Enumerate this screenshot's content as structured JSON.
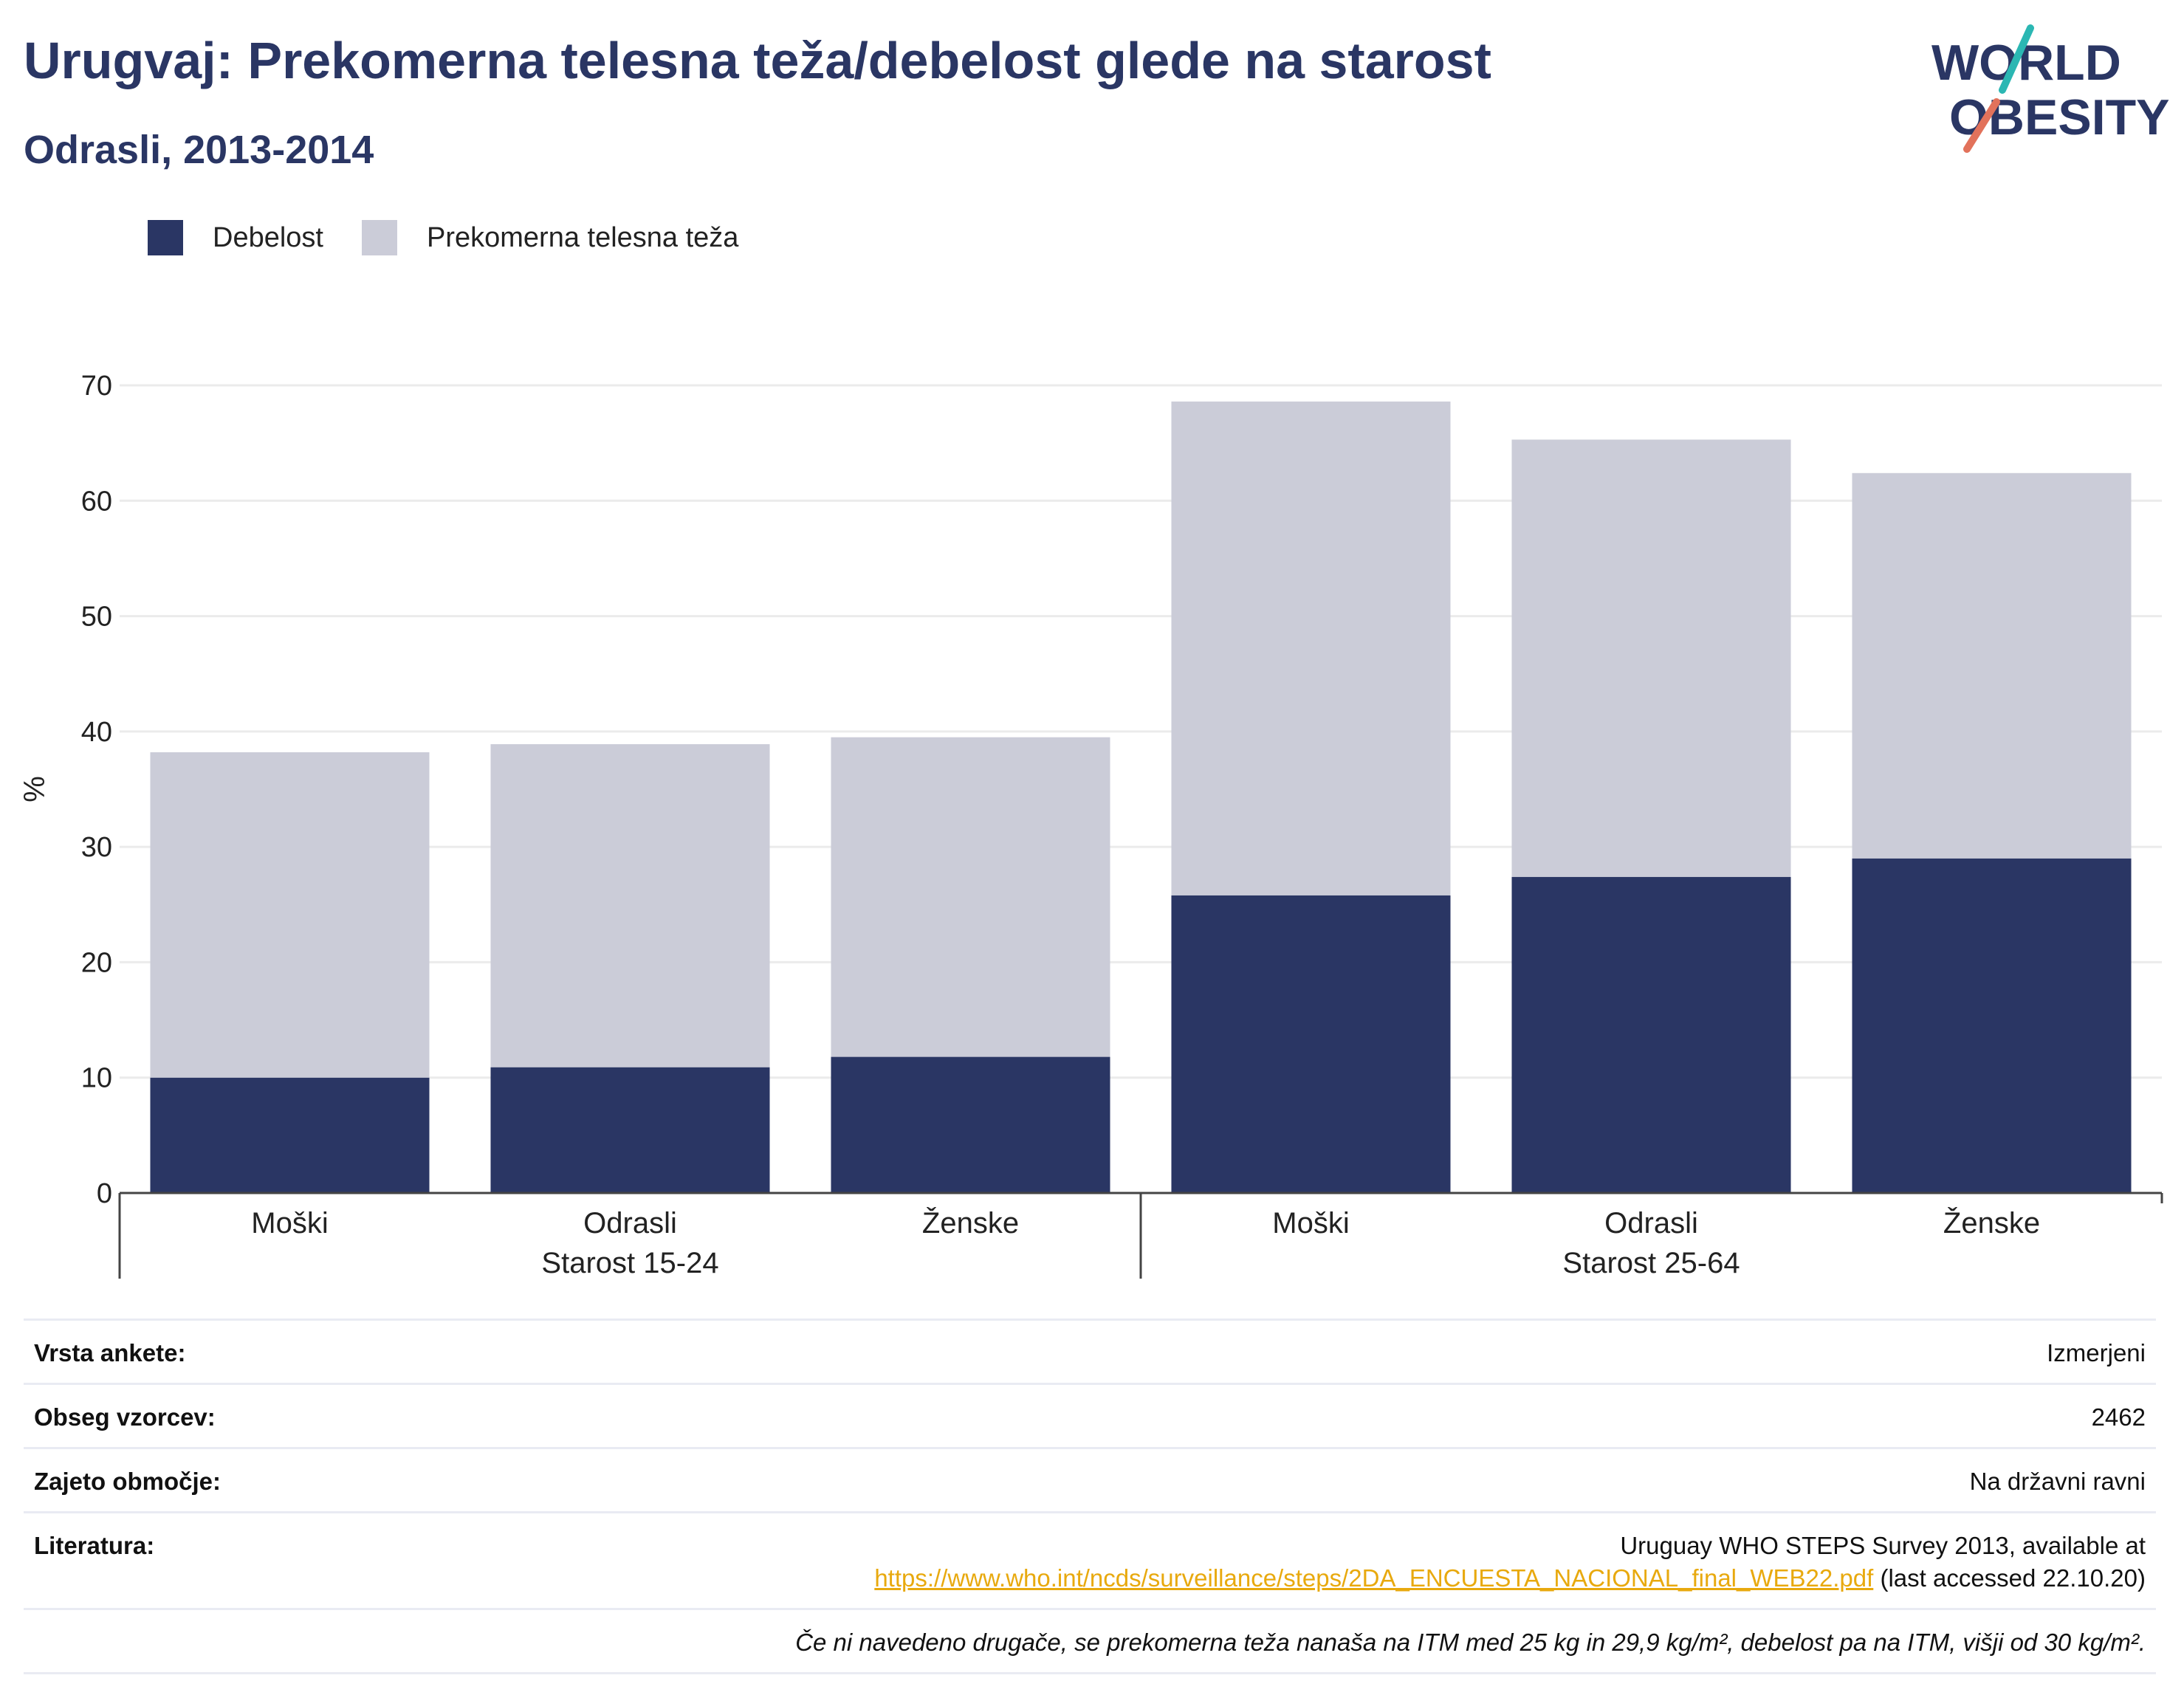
{
  "header": {
    "title": "Urugvaj: Prekomerna telesna teža/debelost glede na starost",
    "subtitle": "Odrasli, 2013-2014"
  },
  "logo": {
    "line1": "WORLD",
    "line2": "OBESITY"
  },
  "colors": {
    "obesity": "#2a3664",
    "overweight": "#cbccd8",
    "title": "#2a3664",
    "link": "#e8a90e",
    "logo_teal": "#2bb7b3",
    "logo_coral": "#e2725b"
  },
  "chart_data": {
    "type": "bar",
    "stacked": true,
    "ylabel": "%",
    "ylim": [
      0,
      70
    ],
    "yticks": [
      0,
      10,
      20,
      30,
      40,
      50,
      60,
      70
    ],
    "grid": true,
    "legend_position": "top-left",
    "groups": [
      {
        "label": "Starost 15-24",
        "categories": [
          "Moški",
          "Odrasli",
          "Ženske"
        ]
      },
      {
        "label": "Starost 25-64",
        "categories": [
          "Moški",
          "Odrasli",
          "Ženske"
        ]
      }
    ],
    "categories": [
      "Moški",
      "Odrasli",
      "Ženske",
      "Moški",
      "Odrasli",
      "Ženske"
    ],
    "series": [
      {
        "name": "Debelost",
        "values": [
          10.0,
          10.9,
          11.8,
          25.8,
          27.4,
          29.0
        ]
      },
      {
        "name": "Prekomerna telesna teža",
        "values": [
          28.2,
          28.0,
          27.7,
          42.8,
          37.9,
          33.4
        ]
      }
    ]
  },
  "info": {
    "survey_type": {
      "label": "Vrsta ankete:",
      "value": "Izmerjeni"
    },
    "sample_size": {
      "label": "Obseg vzorcev:",
      "value": "2462"
    },
    "coverage": {
      "label": "Zajeto območje:",
      "value": "Na državni ravni"
    },
    "literature": {
      "label": "Literatura:",
      "line1": "Uruguay WHO STEPS Survey 2013, available at",
      "url": "https://www.who.int/ncds/surveillance/steps/2DA_ENCUESTA_NACIONAL_final_WEB22.pdf",
      "suffix": " (last accessed 22.10.20)"
    },
    "note": "Če ni navedeno drugače, se prekomerna teža nanaša na ITM med 25 kg in 29,9 kg/m², debelost pa na ITM, višji od 30 kg/m²."
  }
}
